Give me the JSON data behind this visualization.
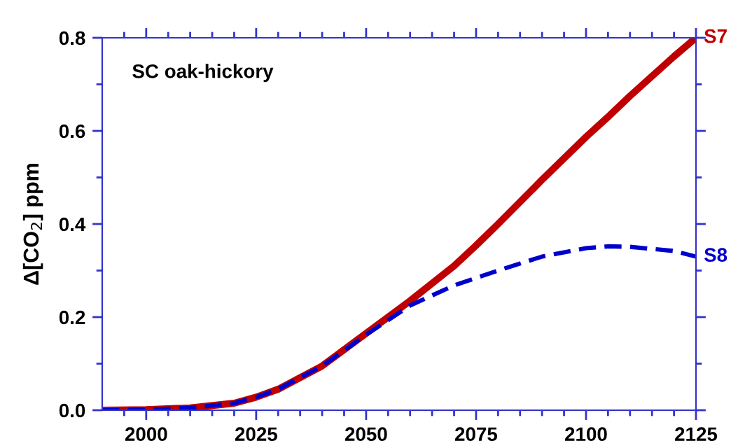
{
  "chart_data": {
    "type": "line",
    "ylabel": "Δ[CO$_{2}$] ppm",
    "annotations": [
      "SC oak-hickory"
    ],
    "x": [
      1990,
      2000,
      2010,
      2020,
      2025,
      2030,
      2040,
      2050,
      2060,
      2070,
      2075,
      2080,
      2090,
      2100,
      2105,
      2110,
      2120,
      2125
    ],
    "series": [
      {
        "name": "S7",
        "color": "#c00000",
        "line_style": "solid",
        "values": [
          0,
          0.001,
          0.005,
          0.015,
          0.028,
          0.045,
          0.095,
          0.165,
          0.235,
          0.31,
          0.354,
          0.4,
          0.495,
          0.587,
          0.63,
          0.675,
          0.76,
          0.8
        ]
      },
      {
        "name": "S8",
        "color": "#0000cc",
        "line_style": "dashed",
        "values": [
          0,
          0.001,
          0.005,
          0.015,
          0.028,
          0.045,
          0.095,
          0.162,
          0.225,
          0.268,
          0.284,
          0.3,
          0.33,
          0.348,
          0.352,
          0.351,
          0.342,
          0.33
        ]
      }
    ],
    "xlim": [
      1990,
      2125
    ],
    "ylim": [
      0,
      0.8
    ],
    "xticks": [
      {
        "value": 1995,
        "label": null
      },
      2000,
      {
        "value": 2005,
        "label": null
      },
      {
        "value": 2010,
        "label": null
      },
      {
        "value": 2015,
        "label": null
      },
      {
        "value": 2020,
        "label": null
      },
      2025,
      {
        "value": 2030,
        "label": null
      },
      {
        "value": 2035,
        "label": null
      },
      {
        "value": 2040,
        "label": null
      },
      {
        "value": 2045,
        "label": null
      },
      2050,
      {
        "value": 2055,
        "label": null
      },
      {
        "value": 2060,
        "label": null
      },
      {
        "value": 2065,
        "label": null
      },
      {
        "value": 2070,
        "label": null
      },
      2075,
      {
        "value": 2080,
        "label": null
      },
      {
        "value": 2085,
        "label": null
      },
      {
        "value": 2090,
        "label": null
      },
      {
        "value": 2095,
        "label": null
      },
      2100,
      {
        "value": 2105,
        "label": null
      },
      {
        "value": 2110,
        "label": null
      },
      {
        "value": 2115,
        "label": null
      },
      {
        "value": 2120,
        "label": null
      },
      2125
    ],
    "yticks": [
      {
        "value": 0,
        "label": "0.0"
      },
      {
        "value": 0.1,
        "label": null
      },
      {
        "value": 0.2,
        "label": "0.2"
      },
      {
        "value": 0.3,
        "label": null
      },
      {
        "value": 0.4,
        "label": "0.4"
      },
      {
        "value": 0.5,
        "label": null
      },
      {
        "value": 0.6,
        "label": "0.6"
      },
      {
        "value": 0.7,
        "label": null
      },
      {
        "value": 0.8,
        "label": "0.8"
      }
    ],
    "grid": false,
    "legend": false,
    "marker": "none"
  }
}
